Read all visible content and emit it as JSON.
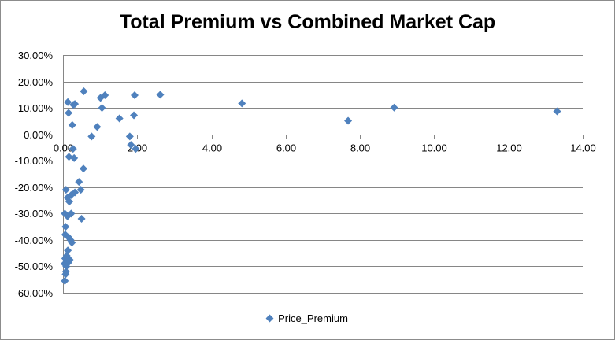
{
  "chart_data": {
    "type": "scatter",
    "title": "Total Premium vs Combined Market Cap",
    "xlabel": "",
    "ylabel": "",
    "xlim": [
      0,
      14
    ],
    "ylim": [
      -0.6,
      0.3
    ],
    "x_ticks": [
      "0.00",
      "2.00",
      "4.00",
      "6.00",
      "8.00",
      "10.00",
      "12.00",
      "14.00"
    ],
    "y_ticks": [
      "30.00%",
      "20.00%",
      "10.00%",
      "0.00%",
      "-10.00%",
      "-20.00%",
      "-30.00%",
      "-40.00%",
      "-50.00%",
      "-60.00%"
    ],
    "grid": "horizontal",
    "legend_position": "bottom",
    "marker_color": "#4f81bd",
    "series": [
      {
        "name": "Price_Premium",
        "points": [
          [
            0.13,
            0.122
          ],
          [
            0.32,
            0.115
          ],
          [
            0.28,
            0.112
          ],
          [
            0.56,
            0.163
          ],
          [
            1.13,
            0.148
          ],
          [
            1.01,
            0.138
          ],
          [
            1.93,
            0.148
          ],
          [
            2.62,
            0.15
          ],
          [
            4.82,
            0.117
          ],
          [
            8.92,
            0.101
          ],
          [
            13.31,
            0.087
          ],
          [
            7.68,
            0.051
          ],
          [
            0.15,
            0.081
          ],
          [
            1.05,
            0.1
          ],
          [
            1.91,
            0.072
          ],
          [
            1.52,
            0.06
          ],
          [
            0.25,
            0.035
          ],
          [
            0.92,
            0.028
          ],
          [
            0.77,
            -0.008
          ],
          [
            1.8,
            -0.008
          ],
          [
            1.83,
            -0.04
          ],
          [
            1.96,
            -0.055
          ],
          [
            0.27,
            -0.055
          ],
          [
            0.16,
            -0.085
          ],
          [
            0.3,
            -0.09
          ],
          [
            0.55,
            -0.13
          ],
          [
            0.43,
            -0.18
          ],
          [
            0.48,
            -0.21
          ],
          [
            0.08,
            -0.21
          ],
          [
            0.32,
            -0.22
          ],
          [
            0.22,
            -0.23
          ],
          [
            0.12,
            -0.24
          ],
          [
            0.17,
            -0.255
          ],
          [
            0.05,
            -0.3
          ],
          [
            0.22,
            -0.3
          ],
          [
            0.12,
            -0.31
          ],
          [
            0.5,
            -0.32
          ],
          [
            0.07,
            -0.35
          ],
          [
            0.06,
            -0.38
          ],
          [
            0.15,
            -0.39
          ],
          [
            0.2,
            -0.4
          ],
          [
            0.24,
            -0.41
          ],
          [
            0.13,
            -0.44
          ],
          [
            0.1,
            -0.46
          ],
          [
            0.06,
            -0.47
          ],
          [
            0.18,
            -0.475
          ],
          [
            0.12,
            -0.48
          ],
          [
            0.15,
            -0.485
          ],
          [
            0.04,
            -0.49
          ],
          [
            0.09,
            -0.5
          ],
          [
            0.08,
            -0.52
          ],
          [
            0.07,
            -0.53
          ],
          [
            0.05,
            -0.555
          ]
        ]
      }
    ]
  }
}
